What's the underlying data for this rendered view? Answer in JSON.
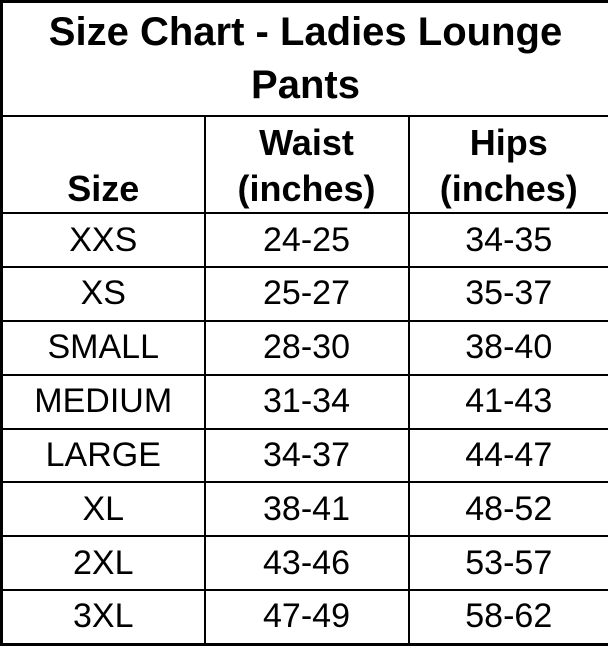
{
  "colors": {
    "background": "#ffffff",
    "text": "#000000",
    "border": "#000000"
  },
  "chart_data": {
    "type": "table",
    "title": "Size Chart - Ladies Lounge Pants",
    "columns": [
      "Size",
      "Waist (inches)",
      "Hips (inches)"
    ],
    "rows": [
      [
        "XXS",
        "24-25",
        "34-35"
      ],
      [
        "XS",
        "25-27",
        "35-37"
      ],
      [
        "SMALL",
        "28-30",
        "38-40"
      ],
      [
        "MEDIUM",
        "31-34",
        "41-43"
      ],
      [
        "LARGE",
        "34-37",
        "44-47"
      ],
      [
        "XL",
        "38-41",
        "48-52"
      ],
      [
        "2XL",
        "43-46",
        "53-57"
      ],
      [
        "3XL",
        "47-49",
        "58-62"
      ]
    ]
  }
}
